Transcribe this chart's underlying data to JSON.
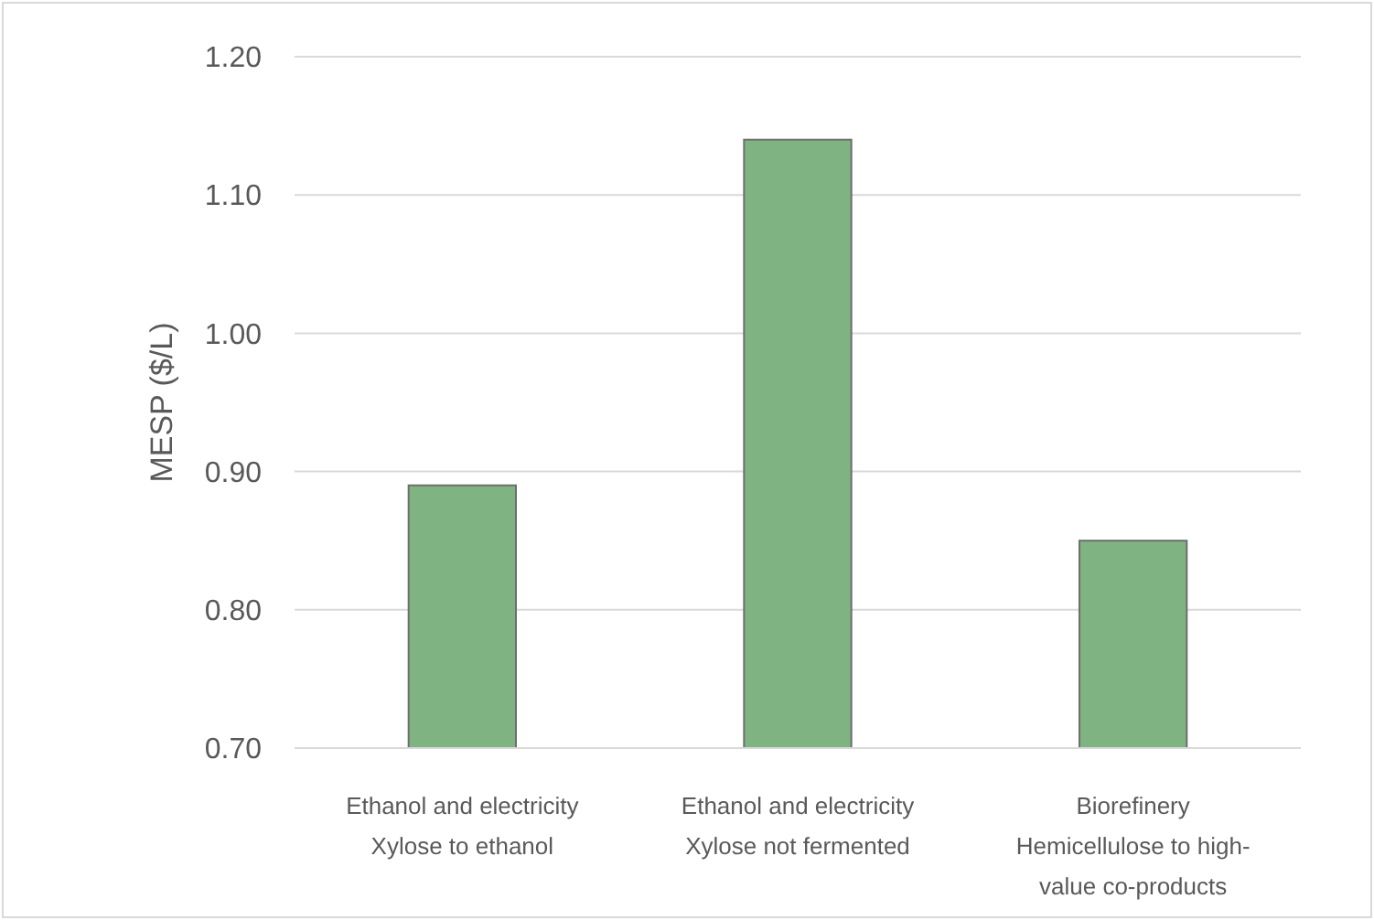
{
  "chart_data": {
    "type": "bar",
    "ylabel": "MESP ($/L)",
    "categories": [
      "Ethanol and electricity\nXylose to ethanol",
      "Ethanol and electricity\nXylose not fermented",
      "Biorefinery\nHemicellulose to high-\nvalue co-products"
    ],
    "values": [
      0.89,
      1.14,
      0.85
    ],
    "color": "#7fb382",
    "ylim": [
      0.7,
      1.2
    ],
    "yticks": [
      {
        "value": 0.7,
        "label": "0.70"
      },
      {
        "value": 0.8,
        "label": "0.80"
      },
      {
        "value": 0.9,
        "label": "0.90"
      },
      {
        "value": 1.0,
        "label": "1.00"
      },
      {
        "value": 1.1,
        "label": "1.10"
      },
      {
        "value": 1.2,
        "label": "1.20"
      }
    ],
    "grid": "y"
  }
}
